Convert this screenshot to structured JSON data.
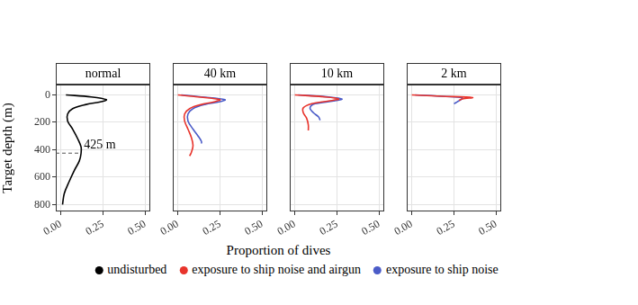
{
  "chart_data": [
    {
      "type": "line",
      "title": "normal",
      "ylabel": "Target depth (m)",
      "xlim": [
        -0.03,
        0.53
      ],
      "xticks": [
        {
          "value": 0,
          "label": "0.00"
        },
        {
          "value": 0.25,
          "label": "0.25"
        },
        {
          "value": 0.5,
          "label": "0.50"
        }
      ],
      "ylim": [
        850,
        -75
      ],
      "yticks": [
        0,
        200,
        400,
        600,
        800
      ],
      "grid": true,
      "series": [
        {
          "name": "undisturbed",
          "color": "#000000",
          "x": [
            0.03,
            0.18,
            0.27,
            0.24,
            0.15,
            0.07,
            0.04,
            0.04,
            0.07,
            0.1,
            0.12,
            0.12,
            0.11,
            0.08,
            0.05,
            0.02,
            0.01
          ],
          "y": [
            0,
            15,
            35,
            50,
            70,
            100,
            140,
            190,
            250,
            320,
            380,
            425,
            480,
            550,
            630,
            720,
            800
          ]
        }
      ],
      "annotations": [
        {
          "text": "425 m",
          "y": 425
        }
      ]
    },
    {
      "type": "line",
      "title": "40 km",
      "xlim": [
        -0.03,
        0.53
      ],
      "xticks": [
        {
          "value": 0,
          "label": "0.00"
        },
        {
          "value": 0.25,
          "label": "0.25"
        },
        {
          "value": 0.5,
          "label": "0.50"
        }
      ],
      "ylim": [
        850,
        -75
      ],
      "yticks": [
        0,
        200,
        400,
        600,
        800
      ],
      "grid": true,
      "tick_labels": "x",
      "series": [
        {
          "name": "exposure to ship noise and airgun",
          "color": "#e8342c",
          "x": [
            0.0,
            0.12,
            0.25,
            0.22,
            0.14,
            0.07,
            0.04,
            0.04,
            0.06,
            0.08,
            0.09,
            0.08,
            0.07
          ],
          "y": [
            0,
            15,
            35,
            50,
            70,
            100,
            140,
            190,
            250,
            310,
            370,
            420,
            445
          ]
        },
        {
          "name": "exposure to ship noise",
          "color": "#4b5cc8",
          "x": [
            0.02,
            0.14,
            0.28,
            0.25,
            0.16,
            0.09,
            0.06,
            0.06,
            0.09,
            0.12,
            0.14,
            0.14
          ],
          "y": [
            0,
            15,
            35,
            50,
            70,
            100,
            140,
            190,
            250,
            300,
            340,
            355
          ]
        }
      ]
    },
    {
      "type": "line",
      "title": "10 km",
      "xlim": [
        -0.03,
        0.53
      ],
      "xticks": [
        {
          "value": 0,
          "label": "0.00"
        },
        {
          "value": 0.25,
          "label": "0.25"
        },
        {
          "value": 0.5,
          "label": "0.50"
        }
      ],
      "ylim": [
        850,
        -75
      ],
      "yticks": [
        0,
        200,
        400,
        600,
        800
      ],
      "grid": true,
      "tick_labels": "x",
      "series": [
        {
          "name": "exposure to ship noise and airgun",
          "color": "#e8342c",
          "x": [
            0.0,
            0.18,
            0.26,
            0.2,
            0.1,
            0.05,
            0.05,
            0.07,
            0.08,
            0.08
          ],
          "y": [
            0,
            15,
            30,
            45,
            65,
            95,
            130,
            170,
            220,
            260
          ]
        },
        {
          "name": "exposure to ship noise",
          "color": "#4b5cc8",
          "x": [
            0.02,
            0.2,
            0.28,
            0.23,
            0.12,
            0.09,
            0.11,
            0.14,
            0.15
          ],
          "y": [
            0,
            15,
            30,
            45,
            65,
            95,
            130,
            160,
            185
          ]
        }
      ]
    },
    {
      "type": "line",
      "title": "2 km",
      "xlim": [
        -0.03,
        0.53
      ],
      "xticks": [
        {
          "value": 0,
          "label": "0.00"
        },
        {
          "value": 0.25,
          "label": "0.25"
        },
        {
          "value": 0.5,
          "label": "0.50"
        }
      ],
      "ylim": [
        850,
        -75
      ],
      "yticks": [
        0,
        200,
        400,
        600,
        800
      ],
      "grid": true,
      "tick_labels": "x",
      "series": [
        {
          "name": "exposure to ship noise and airgun",
          "color": "#e8342c",
          "x": [
            0.0,
            0.18,
            0.36,
            0.3,
            0.28
          ],
          "y": [
            0,
            10,
            20,
            30,
            40
          ]
        },
        {
          "name": "exposure to ship noise",
          "color": "#4b5cc8",
          "x": [
            0.02,
            0.2,
            0.3,
            0.29,
            0.27,
            0.25
          ],
          "y": [
            0,
            12,
            22,
            35,
            50,
            65
          ]
        }
      ]
    }
  ],
  "xlabel": "Proportion of dives",
  "legend": "bottom"
}
